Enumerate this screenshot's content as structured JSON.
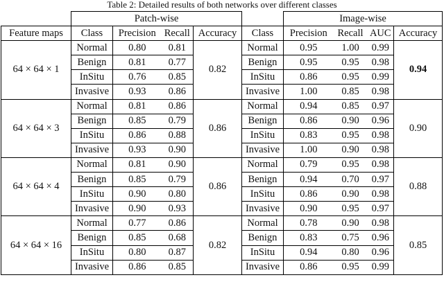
{
  "caption": "Table 2: Detailed results of both networks over different classes",
  "groups": {
    "patch": "Patch-wise",
    "image": "Image-wise"
  },
  "headers": {
    "feature_maps": "Feature maps",
    "class": "Class",
    "precision": "Precision",
    "recall": "Recall",
    "accuracy": "Accuracy",
    "class2": "Class",
    "precision2": "Precision",
    "recall2": "Recall",
    "auc": "AUC",
    "accuracy2": "Accuracy"
  },
  "blocks": [
    {
      "feature_maps": "64 × 64 × 1",
      "patch_accuracy": "0.82",
      "image_accuracy": "0.94",
      "rows": [
        {
          "class": "Normal",
          "p_precision": "0.80",
          "p_recall": "0.81",
          "i_class": "Normal",
          "i_precision": "0.95",
          "i_recall": "1.00",
          "i_auc": "0.99"
        },
        {
          "class": "Benign",
          "p_precision": "0.81",
          "p_recall": "0.77",
          "i_class": "Benign",
          "i_precision": "0.95",
          "i_recall": "0.95",
          "i_auc": "0.98"
        },
        {
          "class": "InSitu",
          "p_precision": "0.76",
          "p_recall": "0.85",
          "i_class": "InSitu",
          "i_precision": "0.86",
          "i_recall": "0.95",
          "i_auc": "0.99"
        },
        {
          "class": "Invasive",
          "p_precision": "0.93",
          "p_recall": "0.86",
          "i_class": "Invasive",
          "i_precision": "1.00",
          "i_recall": "0.85",
          "i_auc": "0.98"
        }
      ]
    },
    {
      "feature_maps": "64 × 64 × 3",
      "patch_accuracy": "0.86",
      "image_accuracy": "0.90",
      "rows": [
        {
          "class": "Normal",
          "p_precision": "0.81",
          "p_recall": "0.86",
          "i_class": "Normal",
          "i_precision": "0.94",
          "i_recall": "0.85",
          "i_auc": "0.97"
        },
        {
          "class": "Benign",
          "p_precision": "0.85",
          "p_recall": "0.79",
          "i_class": "Benign",
          "i_precision": "0.86",
          "i_recall": "0.90",
          "i_auc": "0.96"
        },
        {
          "class": "InSitu",
          "p_precision": "0.86",
          "p_recall": "0.88",
          "i_class": "InSitu",
          "i_precision": "0.83",
          "i_recall": "0.95",
          "i_auc": "0.98"
        },
        {
          "class": "Invasive",
          "p_precision": "0.93",
          "p_recall": "0.90",
          "i_class": "Invasive",
          "i_precision": "1.00",
          "i_recall": "0.90",
          "i_auc": "0.98"
        }
      ]
    },
    {
      "feature_maps": "64 × 64 × 4",
      "patch_accuracy": "0.86",
      "image_accuracy": "0.88",
      "rows": [
        {
          "class": "Normal",
          "p_precision": "0.81",
          "p_recall": "0.90",
          "i_class": "Normal",
          "i_precision": "0.79",
          "i_recall": "0.95",
          "i_auc": "0.98"
        },
        {
          "class": "Benign",
          "p_precision": "0.85",
          "p_recall": "0.79",
          "i_class": "Benign",
          "i_precision": "0.94",
          "i_recall": "0.70",
          "i_auc": "0.97"
        },
        {
          "class": "InSitu",
          "p_precision": "0.90",
          "p_recall": "0.80",
          "i_class": "InSitu",
          "i_precision": "0.86",
          "i_recall": "0.90",
          "i_auc": "0.98"
        },
        {
          "class": "Invasive",
          "p_precision": "0.90",
          "p_recall": "0.93",
          "i_class": "Invasive",
          "i_precision": "0.90",
          "i_recall": "0.95",
          "i_auc": "0.97"
        }
      ]
    },
    {
      "feature_maps": "64 × 64 × 16",
      "patch_accuracy": "0.82",
      "image_accuracy": "0.85",
      "rows": [
        {
          "class": "Normal",
          "p_precision": "0.77",
          "p_recall": "0.86",
          "i_class": "Normal",
          "i_precision": "0.78",
          "i_recall": "0.90",
          "i_auc": "0.98"
        },
        {
          "class": "Benign",
          "p_precision": "0.85",
          "p_recall": "0.68",
          "i_class": "Benign",
          "i_precision": "0.83",
          "i_recall": "0.75",
          "i_auc": "0.96"
        },
        {
          "class": "InSitu",
          "p_precision": "0.80",
          "p_recall": "0.87",
          "i_class": "InSitu",
          "i_precision": "0.94",
          "i_recall": "0.80",
          "i_auc": "0.96"
        },
        {
          "class": "Invasive",
          "p_precision": "0.86",
          "p_recall": "0.85",
          "i_class": "Invasive",
          "i_precision": "0.86",
          "i_recall": "0.95",
          "i_auc": "0.99"
        }
      ]
    }
  ],
  "best_image_accuracy_block": 0
}
